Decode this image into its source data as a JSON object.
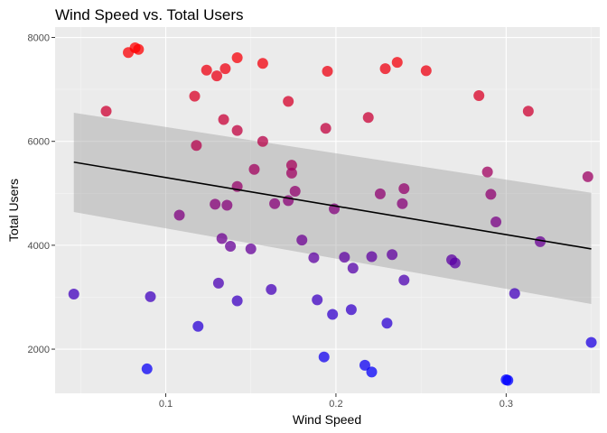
{
  "chart_data": {
    "type": "scatter",
    "title": "Wind Speed vs. Total Users",
    "xlabel": "Wind Speed",
    "ylabel": "Total Users",
    "xlim": [
      0.035,
      0.355
    ],
    "ylim": [
      1150,
      8200
    ],
    "x_ticks": [
      0.1,
      0.2,
      0.3
    ],
    "x_tick_labels": [
      "0.1",
      "0.2",
      "0.3"
    ],
    "y_ticks": [
      2000,
      4000,
      6000,
      8000
    ],
    "y_tick_labels": [
      "2000",
      "4000",
      "6000",
      "8000"
    ],
    "x_minor_ticks": [
      0.05,
      0.15,
      0.25,
      0.35
    ],
    "y_minor_ticks": [
      3000,
      5000,
      7000
    ],
    "grid": true,
    "legend": "none",
    "color_scale": {
      "low": "#0000ff",
      "high": "#ff0000",
      "low_value": 1400,
      "high_value": 7800
    },
    "points": [
      {
        "x": 0.046,
        "y": 3060
      },
      {
        "x": 0.065,
        "y": 6580
      },
      {
        "x": 0.078,
        "y": 7710
      },
      {
        "x": 0.082,
        "y": 7800
      },
      {
        "x": 0.084,
        "y": 7770
      },
      {
        "x": 0.089,
        "y": 1620
      },
      {
        "x": 0.091,
        "y": 3010
      },
      {
        "x": 0.108,
        "y": 4580
      },
      {
        "x": 0.117,
        "y": 6870
      },
      {
        "x": 0.118,
        "y": 5920
      },
      {
        "x": 0.119,
        "y": 2440
      },
      {
        "x": 0.124,
        "y": 7370
      },
      {
        "x": 0.129,
        "y": 4790
      },
      {
        "x": 0.13,
        "y": 7260
      },
      {
        "x": 0.131,
        "y": 3270
      },
      {
        "x": 0.133,
        "y": 4130
      },
      {
        "x": 0.134,
        "y": 6420
      },
      {
        "x": 0.135,
        "y": 7400
      },
      {
        "x": 0.136,
        "y": 4770
      },
      {
        "x": 0.138,
        "y": 3980
      },
      {
        "x": 0.142,
        "y": 7610
      },
      {
        "x": 0.142,
        "y": 6210
      },
      {
        "x": 0.142,
        "y": 5130
      },
      {
        "x": 0.142,
        "y": 2930
      },
      {
        "x": 0.15,
        "y": 3930
      },
      {
        "x": 0.152,
        "y": 5460
      },
      {
        "x": 0.157,
        "y": 7500
      },
      {
        "x": 0.157,
        "y": 6000
      },
      {
        "x": 0.162,
        "y": 3150
      },
      {
        "x": 0.164,
        "y": 4800
      },
      {
        "x": 0.172,
        "y": 6770
      },
      {
        "x": 0.172,
        "y": 4860
      },
      {
        "x": 0.174,
        "y": 5540
      },
      {
        "x": 0.174,
        "y": 5390
      },
      {
        "x": 0.176,
        "y": 5040
      },
      {
        "x": 0.18,
        "y": 4100
      },
      {
        "x": 0.187,
        "y": 3760
      },
      {
        "x": 0.189,
        "y": 2950
      },
      {
        "x": 0.193,
        "y": 1850
      },
      {
        "x": 0.194,
        "y": 6250
      },
      {
        "x": 0.195,
        "y": 7350
      },
      {
        "x": 0.198,
        "y": 2670
      },
      {
        "x": 0.199,
        "y": 4700
      },
      {
        "x": 0.205,
        "y": 3770
      },
      {
        "x": 0.209,
        "y": 2760
      },
      {
        "x": 0.21,
        "y": 3560
      },
      {
        "x": 0.217,
        "y": 1690
      },
      {
        "x": 0.219,
        "y": 6460
      },
      {
        "x": 0.221,
        "y": 1560
      },
      {
        "x": 0.221,
        "y": 3780
      },
      {
        "x": 0.226,
        "y": 4990
      },
      {
        "x": 0.229,
        "y": 7400
      },
      {
        "x": 0.23,
        "y": 2500
      },
      {
        "x": 0.233,
        "y": 3820
      },
      {
        "x": 0.236,
        "y": 7520
      },
      {
        "x": 0.239,
        "y": 4800
      },
      {
        "x": 0.24,
        "y": 3330
      },
      {
        "x": 0.24,
        "y": 5090
      },
      {
        "x": 0.253,
        "y": 7360
      },
      {
        "x": 0.268,
        "y": 3720
      },
      {
        "x": 0.27,
        "y": 3660
      },
      {
        "x": 0.284,
        "y": 6880
      },
      {
        "x": 0.289,
        "y": 5410
      },
      {
        "x": 0.291,
        "y": 4980
      },
      {
        "x": 0.294,
        "y": 4450
      },
      {
        "x": 0.3,
        "y": 1410
      },
      {
        "x": 0.301,
        "y": 1400
      },
      {
        "x": 0.305,
        "y": 3070
      },
      {
        "x": 0.313,
        "y": 6580
      },
      {
        "x": 0.32,
        "y": 4070
      },
      {
        "x": 0.348,
        "y": 5320
      },
      {
        "x": 0.35,
        "y": 2130
      }
    ],
    "trend_line": {
      "method": "linear",
      "x": [
        0.046,
        0.35
      ],
      "y": [
        5600,
        3930
      ],
      "ci_upper": [
        6550,
        5010
      ],
      "ci_lower": [
        4640,
        2870
      ]
    }
  }
}
